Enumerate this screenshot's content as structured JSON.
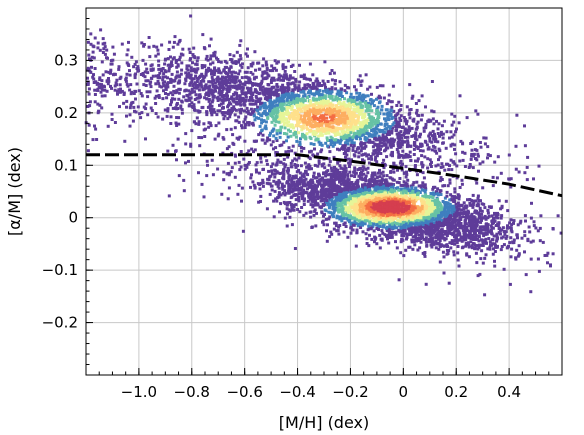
{
  "chart_data": {
    "type": "scatter",
    "subtype": "2d-density-scatter",
    "xlabel": "[M/H] (dex)",
    "ylabel": "[α/M] (dex)",
    "xlim": [
      -1.2,
      0.6
    ],
    "ylim": [
      -0.3,
      0.4
    ],
    "x_ticks": [
      -1.0,
      -0.8,
      -0.6,
      -0.4,
      -0.2,
      0,
      0.2,
      0.4
    ],
    "x_tick_labels": [
      "−1.0",
      "−0.8",
      "−0.6",
      "−0.4",
      "−0.2",
      "0",
      "0.2",
      "0.4"
    ],
    "y_ticks": [
      -0.2,
      -0.1,
      0,
      0.1,
      0.2,
      0.3
    ],
    "y_tick_labels": [
      "−0.2",
      "−0.1",
      "0",
      "0.1",
      "0.2",
      "0.3"
    ],
    "grid": true,
    "colormap": [
      "#5e3c99",
      "#3f7fbf",
      "#66c2a5",
      "#e6f598",
      "#fee08b",
      "#fdae61",
      "#f46d43",
      "#d53e4f"
    ],
    "density_populations": [
      {
        "population": "high-alpha",
        "center": [
          -0.3,
          0.2
        ],
        "peak_density": "medium"
      },
      {
        "population": "low-alpha",
        "center": [
          -0.05,
          0.02
        ],
        "peak_density": "high"
      }
    ],
    "dividing_line": {
      "style": "dashed",
      "color": "#000000",
      "x": [
        -1.2,
        -0.6,
        -0.4,
        -0.2,
        0.0,
        0.2,
        0.4,
        0.6
      ],
      "y": [
        0.12,
        0.12,
        0.12,
        0.108,
        0.094,
        0.08,
        0.064,
        0.042
      ]
    }
  }
}
